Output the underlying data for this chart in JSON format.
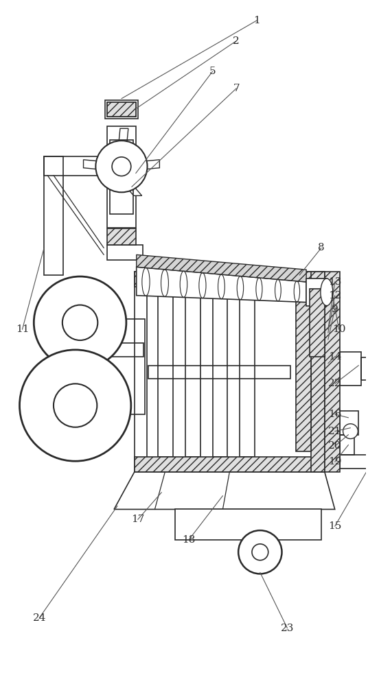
{
  "bg_color": "#ffffff",
  "line_color": "#2a2a2a",
  "figsize": [
    5.36,
    10.0
  ],
  "dpi": 100,
  "xlim": [
    0,
    536
  ],
  "ylim": [
    0,
    1000
  ]
}
